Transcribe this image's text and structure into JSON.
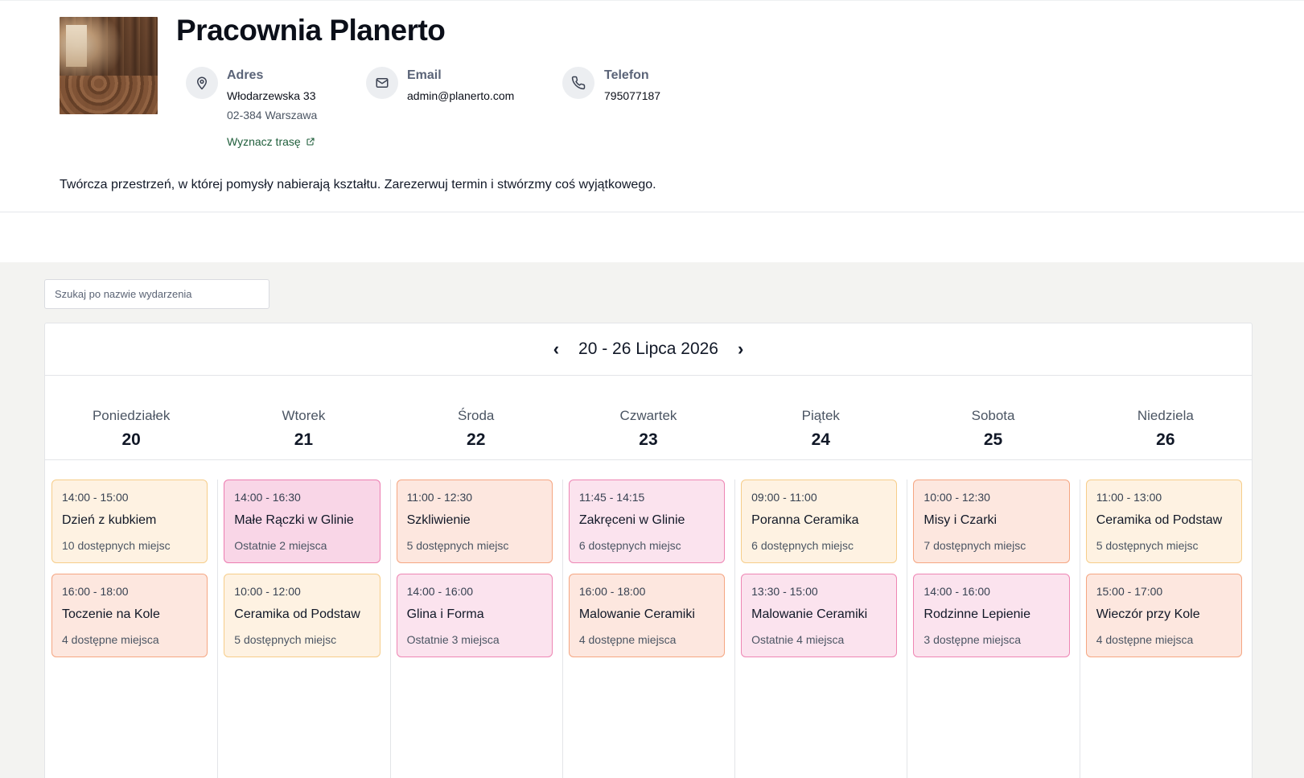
{
  "studio": {
    "name": "Pracownia Planerto",
    "address_label": "Adres",
    "street": "Włodarzewska 33",
    "city": "02-384 Warszawa",
    "route_link": "Wyznacz trasę",
    "email_label": "Email",
    "email": "admin@planerto.com",
    "phone_label": "Telefon",
    "phone": "795077187",
    "description": "Twórcza przestrzeń, w której pomysły nabierają kształtu. Zarezerwuj termin i stwórzmy coś wyjątkowego."
  },
  "search": {
    "placeholder": "Szukaj po nazwie wydarzenia"
  },
  "calendar": {
    "week_title": "20 - 26 Lipca 2026",
    "prev_icon": "chevron-left-icon",
    "next_icon": "chevron-right-icon",
    "days": [
      {
        "name": "Poniedziałek",
        "number": "20"
      },
      {
        "name": "Wtorek",
        "number": "21"
      },
      {
        "name": "Środa",
        "number": "22"
      },
      {
        "name": "Czwartek",
        "number": "23"
      },
      {
        "name": "Piątek",
        "number": "24"
      },
      {
        "name": "Sobota",
        "number": "25"
      },
      {
        "name": "Niedziela",
        "number": "26"
      }
    ],
    "events": [
      [
        {
          "time": "14:00 - 15:00",
          "title": "Dzień z kubkiem",
          "spots": "10 dostępnych miejsc",
          "style": "yellow"
        },
        {
          "time": "16:00 - 18:00",
          "title": "Toczenie na Kole",
          "spots": "4 dostępne miejsca",
          "style": "orange"
        }
      ],
      [
        {
          "time": "14:00 - 16:30",
          "title": "Małe Rączki w Glinie",
          "spots": "Ostatnie 2 miejsca",
          "style": "pinkstrong"
        },
        {
          "time": "10:00 - 12:00",
          "title": "Ceramika od Podstaw",
          "spots": "5 dostępnych miejsc",
          "style": "yellow"
        }
      ],
      [
        {
          "time": "11:00 - 12:30",
          "title": "Szkliwienie",
          "spots": "5 dostępnych miejsc",
          "style": "orange"
        },
        {
          "time": "14:00 - 16:00",
          "title": "Glina i Forma",
          "spots": "Ostatnie 3 miejsca",
          "style": "pink"
        }
      ],
      [
        {
          "time": "11:45 - 14:15",
          "title": "Zakręceni w Glinie",
          "spots": "6 dostępnych miejsc",
          "style": "pink"
        },
        {
          "time": "16:00 - 18:00",
          "title": "Malowanie Ceramiki",
          "spots": "4 dostępne miejsca",
          "style": "orange"
        }
      ],
      [
        {
          "time": "09:00 - 11:00",
          "title": "Poranna Ceramika",
          "spots": "6 dostępnych miejsc",
          "style": "yellow"
        },
        {
          "time": "13:30 - 15:00",
          "title": "Malowanie Ceramiki",
          "spots": "Ostatnie 4 miejsca",
          "style": "pink"
        }
      ],
      [
        {
          "time": "10:00 - 12:30",
          "title": "Misy i Czarki",
          "spots": "7 dostępnych miejsc",
          "style": "orange"
        },
        {
          "time": "14:00 - 16:00",
          "title": "Rodzinne Lepienie",
          "spots": "3 dostępne miejsca",
          "style": "pink"
        }
      ],
      [
        {
          "time": "11:00 - 13:00",
          "title": "Ceramika od Podstaw",
          "spots": "5 dostępnych miejsc",
          "style": "yellow"
        },
        {
          "time": "15:00 - 17:00",
          "title": "Wieczór przy Kole",
          "spots": "4 dostępne miejsca",
          "style": "orange"
        }
      ]
    ]
  }
}
